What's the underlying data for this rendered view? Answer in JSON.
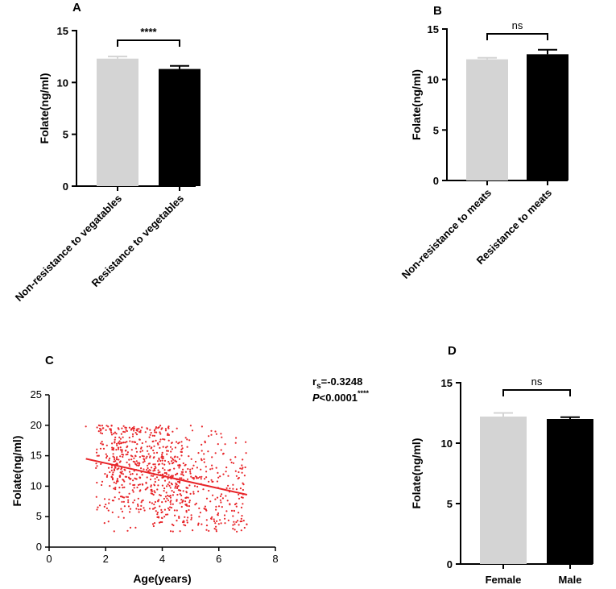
{
  "chart_data": [
    {
      "panel": "A",
      "type": "bar",
      "categories": [
        "Non-resistance to vegatables",
        "Resistance to vegetables"
      ],
      "values": [
        12.3,
        11.3
      ],
      "errors": [
        0.2,
        0.3
      ],
      "colors": [
        "#d4d4d4",
        "#000000"
      ],
      "ylabel": "Folate(ng/ml)",
      "ylim": [
        0,
        15
      ],
      "yticks": [
        0,
        5,
        10,
        15
      ],
      "significance": "****"
    },
    {
      "panel": "B",
      "type": "bar",
      "categories": [
        "Non-resistance to meats",
        "Resistance to meats"
      ],
      "values": [
        12.0,
        12.5
      ],
      "errors": [
        0.15,
        0.45
      ],
      "colors": [
        "#d4d4d4",
        "#000000"
      ],
      "ylabel": "Folate(ng/ml)",
      "ylim": [
        0,
        15
      ],
      "yticks": [
        0,
        5,
        10,
        15
      ],
      "significance": "ns"
    },
    {
      "panel": "C",
      "type": "scatter",
      "xlabel": "Age(years)",
      "ylabel": "Folate(ng/ml)",
      "xlim": [
        0,
        8
      ],
      "ylim": [
        0,
        25
      ],
      "xticks": [
        0,
        2,
        4,
        6,
        8
      ],
      "yticks": [
        0,
        5,
        10,
        15,
        20,
        25
      ],
      "x_range": [
        1.3,
        7.0
      ],
      "y_range": [
        2.5,
        20.0
      ],
      "n_points": 900,
      "point_color": "#e8262a",
      "fit_line": {
        "x": [
          1.3,
          7.0
        ],
        "y": [
          14.5,
          8.6
        ]
      },
      "rs_label": "r",
      "rs_sub": "s",
      "rs_value": "=-0.3248",
      "p_label": "P",
      "p_value": "<0.0001",
      "p_stars": "****"
    },
    {
      "panel": "D",
      "type": "bar",
      "categories": [
        "Female",
        "Male"
      ],
      "values": [
        12.2,
        12.0
      ],
      "errors": [
        0.3,
        0.15
      ],
      "colors": [
        "#d4d4d4",
        "#000000"
      ],
      "ylabel": "Folate(ng/ml)",
      "ylim": [
        0,
        15
      ],
      "yticks": [
        0,
        5,
        10,
        15
      ],
      "significance": "ns"
    }
  ]
}
